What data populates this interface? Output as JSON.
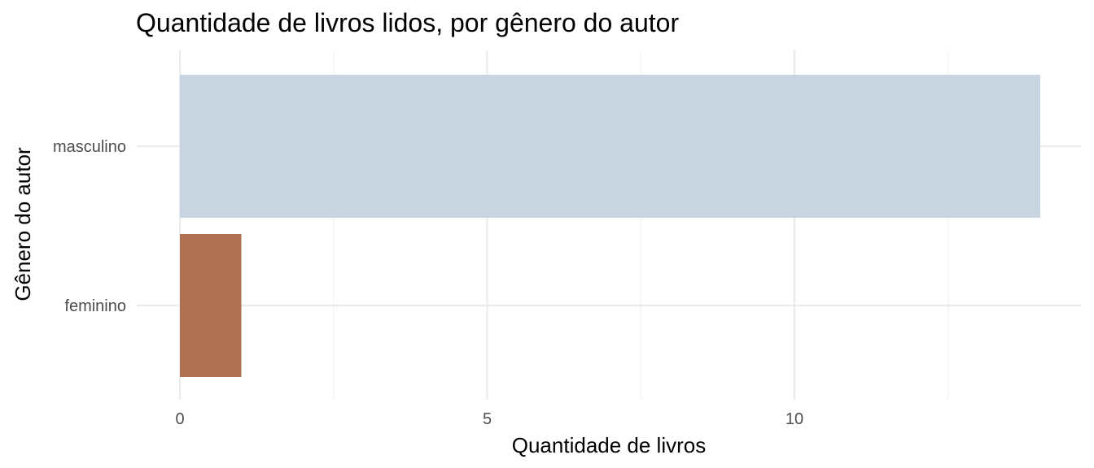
{
  "chart_data": {
    "type": "bar",
    "orientation": "horizontal",
    "title": "Quantidade de livros lidos, por gênero do autor",
    "xlabel": "Quantidade de livros",
    "ylabel": "Gênero do autor",
    "categories": [
      "feminino",
      "masculino"
    ],
    "values": [
      1,
      14
    ],
    "colors": [
      "#b07153",
      "#c8d4e0"
    ],
    "xlim": [
      0,
      14
    ],
    "xticks": [
      0,
      5,
      10
    ],
    "grid": true,
    "legend": "none"
  }
}
